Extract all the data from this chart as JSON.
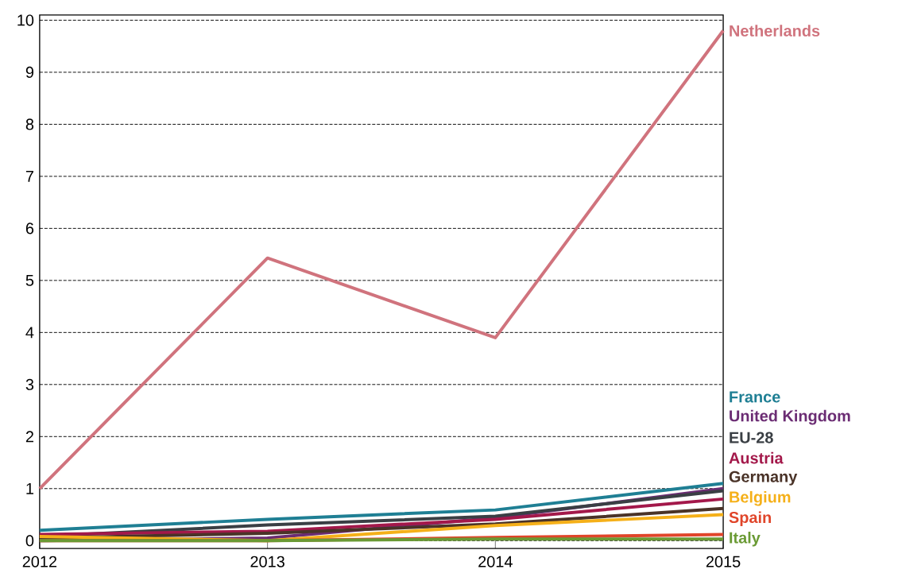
{
  "chart_data": {
    "type": "line",
    "x": [
      2012,
      2013,
      2014,
      2015
    ],
    "series": [
      {
        "name": "Netherlands",
        "color": "#d0737d",
        "values": [
          1.0,
          5.43,
          3.9,
          9.8
        ]
      },
      {
        "name": "France",
        "color": "#1f7f94",
        "values": [
          0.2,
          0.41,
          0.59,
          1.1
        ]
      },
      {
        "name": "United Kingdom",
        "color": "#6b2c73",
        "values": [
          0.0,
          0.05,
          0.44,
          1.0
        ]
      },
      {
        "name": "EU-28",
        "color": "#3a3f44",
        "values": [
          0.08,
          0.3,
          0.47,
          0.96
        ]
      },
      {
        "name": "Austria",
        "color": "#a3184a",
        "values": [
          0.12,
          0.18,
          0.41,
          0.8
        ]
      },
      {
        "name": "Germany",
        "color": "#4a3328",
        "values": [
          0.05,
          0.14,
          0.32,
          0.62
        ]
      },
      {
        "name": "Belgium",
        "color": "#f5b019",
        "values": [
          0.08,
          0.0,
          0.29,
          0.5
        ]
      },
      {
        "name": "Spain",
        "color": "#e0452a",
        "values": [
          0.0,
          0.0,
          0.06,
          0.12
        ]
      },
      {
        "name": "Italy",
        "color": "#6a9a34",
        "values": [
          0.0,
          0.0,
          0.03,
          0.03
        ]
      }
    ],
    "xlim": [
      2012,
      2015
    ],
    "ylim": [
      -0.15,
      10.1
    ],
    "xticks": [
      2012,
      2013,
      2014,
      2015
    ],
    "yticks": [
      0,
      1,
      2,
      3,
      4,
      5,
      6,
      7,
      8,
      9,
      10
    ],
    "grid": "y",
    "legend": false,
    "marker": "none",
    "line_style": "solid"
  }
}
